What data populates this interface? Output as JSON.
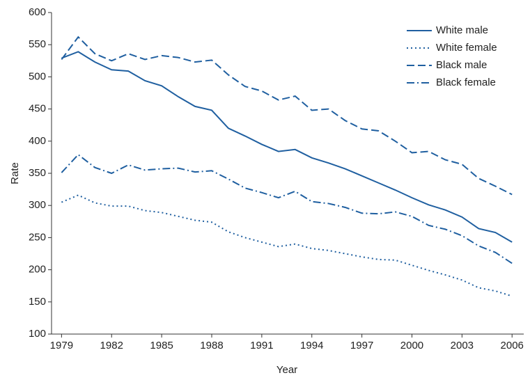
{
  "chart_data": {
    "type": "line",
    "xlabel": "Year",
    "ylabel": "Rate",
    "x": [
      1979,
      1980,
      1981,
      1982,
      1983,
      1984,
      1985,
      1986,
      1987,
      1988,
      1989,
      1990,
      1991,
      1992,
      1993,
      1994,
      1995,
      1996,
      1997,
      1998,
      1999,
      2000,
      2001,
      2002,
      2003,
      2004,
      2005,
      2006
    ],
    "series": [
      {
        "name": "White male",
        "color": "#1f5fa0",
        "dash": "solid",
        "values": [
          529,
          539,
          523,
          511,
          509,
          494,
          486,
          469,
          454,
          448,
          420,
          408,
          395,
          384,
          387,
          374,
          366,
          357,
          346,
          335,
          324,
          312,
          301,
          293,
          282,
          264,
          258,
          243
        ]
      },
      {
        "name": "White female",
        "color": "#1f5fa0",
        "dash": "dotted",
        "values": [
          305,
          316,
          304,
          299,
          299,
          292,
          289,
          283,
          277,
          274,
          259,
          250,
          243,
          236,
          240,
          233,
          230,
          225,
          220,
          216,
          215,
          207,
          199,
          192,
          184,
          172,
          167,
          159
        ]
      },
      {
        "name": "Black male",
        "color": "#1f5fa0",
        "dash": "dashed",
        "values": [
          527,
          562,
          536,
          525,
          536,
          527,
          533,
          530,
          523,
          526,
          503,
          485,
          478,
          464,
          470,
          448,
          450,
          432,
          419,
          416,
          400,
          382,
          384,
          371,
          364,
          342,
          330,
          317
        ]
      },
      {
        "name": "Black female",
        "color": "#1f5fa0",
        "dash": "dashdot",
        "values": [
          351,
          379,
          359,
          350,
          363,
          355,
          357,
          358,
          352,
          354,
          341,
          327,
          320,
          312,
          322,
          306,
          303,
          297,
          288,
          287,
          290,
          283,
          269,
          263,
          253,
          237,
          227,
          210
        ]
      }
    ],
    "xlim": [
      1978.4,
      2006.7
    ],
    "xticks": [
      1979,
      1982,
      1985,
      1988,
      1991,
      1994,
      1997,
      2000,
      2003,
      2006
    ],
    "ylim": [
      100,
      600
    ],
    "yticks": [
      100,
      150,
      200,
      250,
      300,
      350,
      400,
      450,
      500,
      550,
      600
    ],
    "legend": "upper right",
    "grid": false
  }
}
